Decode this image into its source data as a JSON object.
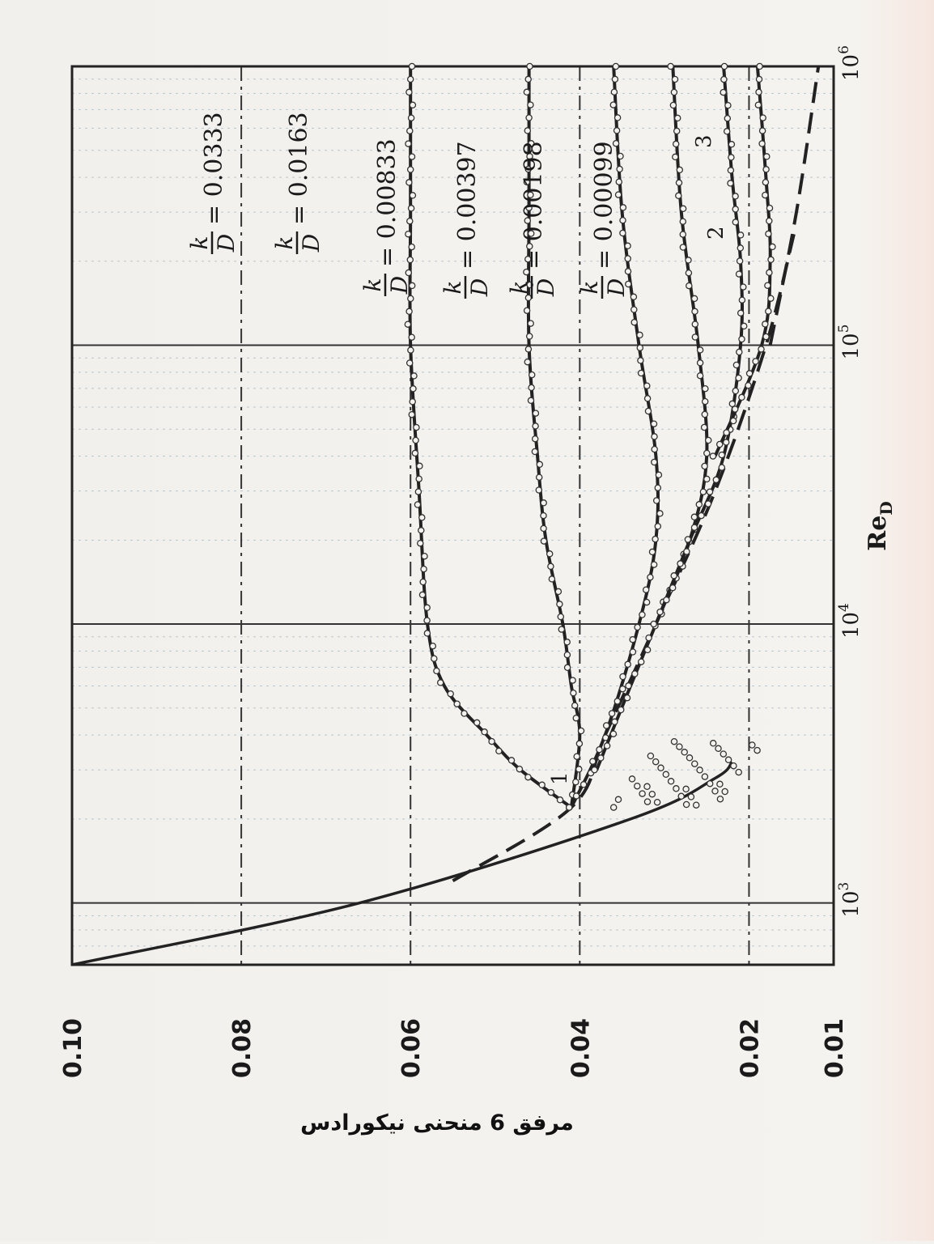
{
  "chart_data": {
    "type": "line",
    "title": "",
    "xlabel": "Re",
    "xlabel_sub": "D",
    "ylabel": "",
    "x_scale": "log",
    "xlim": [
      600,
      1000000
    ],
    "ylim": [
      0.01,
      0.1
    ],
    "grid": true,
    "x_ticks": [
      {
        "value": 1000,
        "base": "10",
        "exp": "3"
      },
      {
        "value": 10000,
        "base": "10",
        "exp": "4"
      },
      {
        "value": 100000,
        "base": "10",
        "exp": "5"
      },
      {
        "value": 1000000,
        "base": "10",
        "exp": "6"
      }
    ],
    "y_ticks": [
      {
        "value": 0.1,
        "label": "0.10"
      },
      {
        "value": 0.08,
        "label": "0.08"
      },
      {
        "value": 0.06,
        "label": "0.06"
      },
      {
        "value": 0.04,
        "label": "0.04"
      },
      {
        "value": 0.02,
        "label": "0.02"
      },
      {
        "value": 0.01,
        "label": "0.01"
      }
    ],
    "reference_lines": [
      {
        "name": "1",
        "style": "solid",
        "points": [
          [
            600,
            0.1
          ],
          [
            1000,
            0.066
          ],
          [
            2000,
            0.034
          ],
          [
            2800,
            0.024
          ],
          [
            3200,
            0.022
          ]
        ]
      },
      {
        "name": "2",
        "style": "dashed",
        "points": [
          [
            1200,
            0.055
          ],
          [
            2200,
            0.041
          ],
          [
            4000,
            0.037
          ],
          [
            10000,
            0.031
          ],
          [
            30000,
            0.024
          ],
          [
            100000,
            0.018
          ],
          [
            250000,
            0.0147
          ]
        ]
      },
      {
        "name": "3",
        "style": "dashed",
        "points": [
          [
            100000,
            0.0175
          ],
          [
            300000,
            0.0144
          ],
          [
            1000000,
            0.0118
          ]
        ]
      }
    ],
    "series": [
      {
        "roughness_value": "0.0333",
        "points": [
          [
            2200,
            0.041
          ],
          [
            3000,
            0.047
          ],
          [
            4000,
            0.051
          ],
          [
            6000,
            0.056
          ],
          [
            10000,
            0.058
          ],
          [
            30000,
            0.059
          ],
          [
            100000,
            0.06
          ],
          [
            300000,
            0.06
          ],
          [
            1000000,
            0.06
          ]
        ]
      },
      {
        "roughness_value": "0.0163",
        "points": [
          [
            2200,
            0.041
          ],
          [
            4000,
            0.04
          ],
          [
            6000,
            0.041
          ],
          [
            10000,
            0.042
          ],
          [
            20000,
            0.044
          ],
          [
            40000,
            0.045
          ],
          [
            100000,
            0.046
          ],
          [
            300000,
            0.046
          ],
          [
            1000000,
            0.046
          ]
        ]
      },
      {
        "roughness_value": "0.00833",
        "points": [
          [
            2200,
            0.041
          ],
          [
            4000,
            0.037
          ],
          [
            10000,
            0.033
          ],
          [
            20000,
            0.031
          ],
          [
            40000,
            0.031
          ],
          [
            100000,
            0.033
          ],
          [
            300000,
            0.035
          ],
          [
            1000000,
            0.036
          ]
        ]
      },
      {
        "roughness_value": "0.00397",
        "points": [
          [
            3000,
            0.038
          ],
          [
            6000,
            0.034
          ],
          [
            10000,
            0.031
          ],
          [
            20000,
            0.027
          ],
          [
            40000,
            0.025
          ],
          [
            100000,
            0.026
          ],
          [
            300000,
            0.028
          ],
          [
            1000000,
            0.029
          ]
        ]
      },
      {
        "roughness_value": "0.00198",
        "points": [
          [
            10000,
            0.031
          ],
          [
            20000,
            0.027
          ],
          [
            40000,
            0.023
          ],
          [
            100000,
            0.021
          ],
          [
            200000,
            0.021
          ],
          [
            400000,
            0.022
          ],
          [
            1000000,
            0.023
          ]
        ]
      },
      {
        "roughness_value": "0.00099",
        "points": [
          [
            40000,
            0.024
          ],
          [
            100000,
            0.0185
          ],
          [
            200000,
            0.0175
          ],
          [
            400000,
            0.018
          ],
          [
            1000000,
            0.019
          ]
        ]
      }
    ],
    "fraction_label": {
      "numerator": "k",
      "denominator": "D"
    }
  },
  "caption": "مرفق 6 منحنی نیکورادس"
}
